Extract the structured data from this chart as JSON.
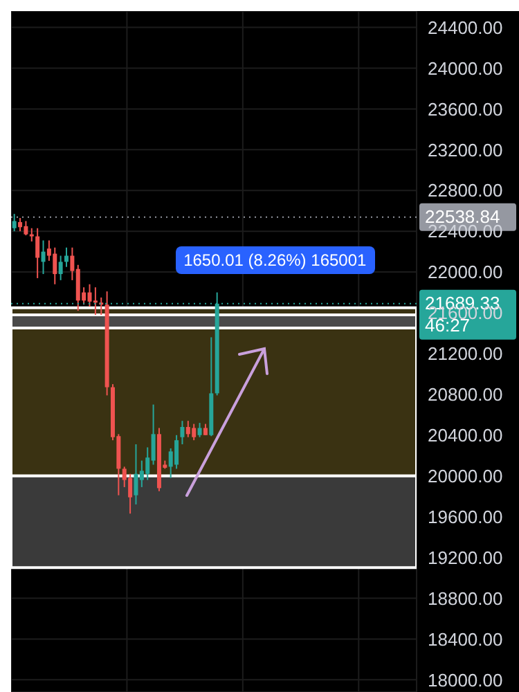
{
  "chart_data": {
    "type": "candlestick",
    "categories": [
      null,
      null,
      null,
      null,
      null,
      null,
      null,
      null,
      null,
      null,
      null,
      null,
      null,
      null,
      null,
      null,
      null,
      null,
      null,
      null,
      null,
      null,
      null,
      null,
      null,
      null,
      null,
      null,
      null,
      null,
      null,
      null,
      null,
      null,
      null,
      null,
      null,
      null,
      null,
      null,
      null,
      null,
      null,
      null,
      null,
      null,
      null,
      null,
      null,
      null,
      null,
      null,
      null,
      null,
      null,
      null,
      null,
      null,
      null,
      null,
      null,
      null,
      null,
      null,
      null,
      null,
      null,
      null,
      null,
      null
    ],
    "ohlc": [
      [
        22430,
        22570,
        22400,
        22500
      ],
      [
        22490,
        22530,
        22400,
        22440
      ],
      [
        22450,
        22500,
        22360,
        22370
      ],
      [
        22370,
        22430,
        22300,
        22350
      ],
      [
        22350,
        22430,
        21940,
        22140
      ],
      [
        22100,
        22310,
        21980,
        22200
      ],
      [
        22230,
        22310,
        22110,
        22160
      ],
      [
        22180,
        22240,
        21880,
        21980
      ],
      [
        21980,
        22160,
        21920,
        22100
      ],
      [
        22100,
        22240,
        22050,
        22160
      ],
      [
        22160,
        22240,
        21920,
        22010
      ],
      [
        22030,
        22070,
        21620,
        21720
      ],
      [
        21800,
        21850,
        21680,
        21720
      ],
      [
        21800,
        21880,
        21660,
        21710
      ],
      [
        21720,
        21850,
        21580,
        21700
      ],
      [
        21700,
        21750,
        21580,
        21680
      ],
      [
        21680,
        21810,
        20790,
        20870
      ],
      [
        20870,
        20900,
        20350,
        20380
      ],
      [
        20390,
        20410,
        19810,
        20070
      ],
      [
        20070,
        20090,
        19890,
        19960
      ],
      [
        19980,
        20020,
        19630,
        19790
      ],
      [
        19810,
        20310,
        19720,
        20020
      ],
      [
        19960,
        20150,
        19890,
        20050
      ],
      [
        20020,
        20280,
        19960,
        20180
      ],
      [
        20150,
        20700,
        20110,
        20410
      ],
      [
        20410,
        20470,
        19850,
        19880
      ],
      [
        20110,
        20150,
        20070,
        20080
      ],
      [
        20090,
        20270,
        19980,
        20240
      ],
      [
        20110,
        20400,
        20070,
        20350
      ],
      [
        20380,
        20540,
        20310,
        20480
      ],
      [
        20480,
        20540,
        20380,
        20410
      ],
      [
        20470,
        20510,
        20350,
        20380
      ],
      [
        20400,
        20520,
        20380,
        20470
      ],
      [
        20470,
        20510,
        20400,
        20400
      ],
      [
        20400,
        21360,
        20390,
        20810
      ],
      [
        20810,
        21800,
        20790,
        21689.33
      ],
      null,
      null,
      null,
      null,
      null,
      null,
      null,
      null,
      null,
      null,
      null,
      null,
      null,
      null,
      null,
      null,
      null,
      null,
      null,
      null,
      null,
      null,
      null,
      null,
      null,
      null,
      null,
      null,
      null,
      null,
      null,
      null,
      null,
      null
    ],
    "colors": [
      "#26a69a",
      "#ef5350",
      "#ef5350",
      "#ef5350",
      "#ef5350",
      "#26a69a",
      "#ef5350",
      "#ef5350",
      "#26a69a",
      "#26a69a",
      "#ef5350",
      "#ef5350",
      "#ef5350",
      "#ef5350",
      "#ef5350",
      "#ef5350",
      "#ef5350",
      "#ef5350",
      "#ef5350",
      "#ef5350",
      "#ef5350",
      "#26a69a",
      "#26a69a",
      "#26a69a",
      "#26a69a",
      "#ef5350",
      "#ef5350",
      "#26a69a",
      "#26a69a",
      "#26a69a",
      "#ef5350",
      "#ef5350",
      "#26a69a",
      "#ef5350",
      "#26a69a",
      "#26a69a",
      null,
      null,
      null,
      null,
      null,
      null,
      null,
      null,
      null,
      null,
      null,
      null,
      null,
      null,
      null,
      null,
      null,
      null,
      null,
      null,
      null,
      null,
      null,
      null,
      null,
      null,
      null,
      null,
      null,
      null,
      null,
      null,
      null,
      null
    ],
    "ylim": [
      17880,
      24560
    ],
    "yticks": [
      {
        "value": 18000,
        "label": "18000.00"
      },
      {
        "value": 18400,
        "label": "18400.00"
      },
      {
        "value": 18800,
        "label": "18800.00"
      },
      {
        "value": 19200,
        "label": "19200.00"
      },
      {
        "value": 19600,
        "label": "19600.00"
      },
      {
        "value": 20000,
        "label": "20000.00"
      },
      {
        "value": 20400,
        "label": "20400.00"
      },
      {
        "value": 20800,
        "label": "20800.00"
      },
      {
        "value": 21200,
        "label": "21200.00"
      },
      {
        "value": 21600,
        "label": "21600.00"
      },
      {
        "value": 22000,
        "label": "22000.00"
      },
      {
        "value": 22400,
        "label": "22400.00"
      },
      {
        "value": 22800,
        "label": "22800.00"
      },
      {
        "value": 23200,
        "label": "23200.00"
      },
      {
        "value": 23600,
        "label": "23600.00"
      },
      {
        "value": 24000,
        "label": "24000.00"
      },
      {
        "value": 24400,
        "label": "24400.00"
      }
    ],
    "bands": [
      {
        "axis": "y",
        "from": 20000,
        "to": 21650,
        "color": "#3a3212"
      },
      {
        "axis": "y",
        "from": 21450,
        "to": 21580,
        "color": "#4a4a4a"
      },
      {
        "axis": "y",
        "from": 19100,
        "to": 20000,
        "color": "#3a3a3a"
      }
    ],
    "ref_lines": [
      {
        "axis": "y",
        "value": 22538.84,
        "label": "22538.84",
        "color": "#9598a1",
        "line_style": "dotted"
      },
      {
        "axis": "y",
        "value": 21689.33,
        "label": "21689.33 46:27",
        "color": "#26a69a",
        "line_style": "dotted"
      }
    ],
    "annotations": [
      "1650.01 (8.26%) 165001"
    ],
    "grid": true,
    "tick_labels": "y"
  }
}
